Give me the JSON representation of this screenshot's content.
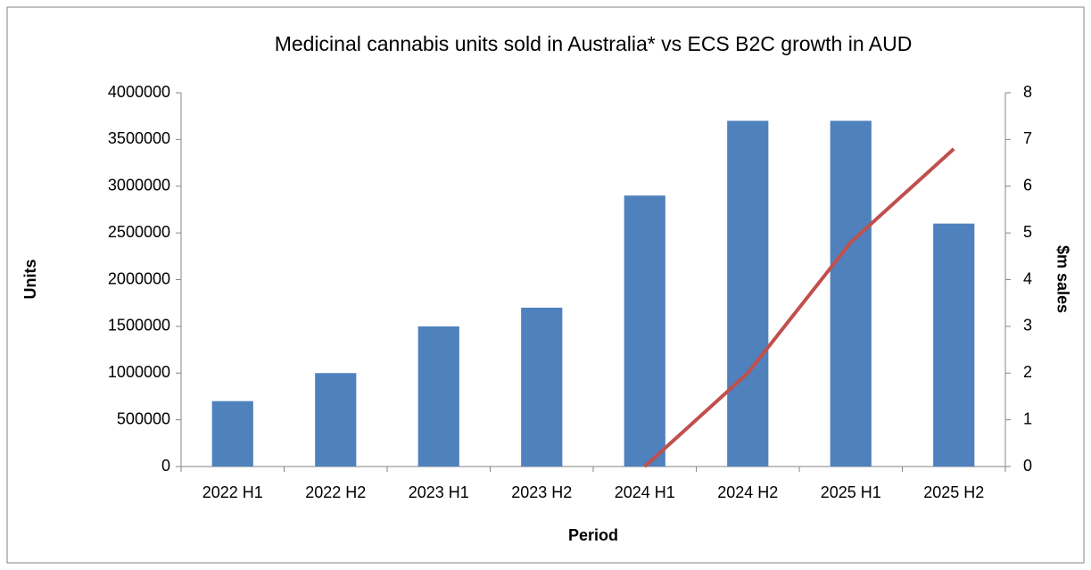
{
  "chart_data": {
    "type": "bar",
    "title": "Medicinal cannabis units sold in Australia* vs ECS B2C growth in AUD",
    "x_label": "Period",
    "y_label": "Units",
    "y2_label": "$m sales",
    "categories": [
      "2022 H1",
      "2022 H2",
      "2023 H1",
      "2023 H2",
      "2024 H1",
      "2024 H2",
      "2025 H1",
      "2025 H2"
    ],
    "series": [
      {
        "type": "bar",
        "color": "#4f81bd",
        "values": [
          700000,
          1000000,
          1500000,
          1700000,
          2900000,
          3700000,
          3700000,
          2600000
        ]
      },
      {
        "type": "line",
        "axis": "y2",
        "color": "#c0504d",
        "values": [
          null,
          null,
          null,
          null,
          0,
          2,
          4.8,
          6.8
        ]
      }
    ],
    "ylim": [
      0,
      4000000
    ],
    "yticks": [
      0,
      500000,
      1000000,
      1500000,
      2000000,
      2500000,
      3000000,
      3500000,
      4000000
    ],
    "y2lim": [
      0,
      8
    ],
    "y2ticks": [
      0,
      1,
      2,
      3,
      4,
      5,
      6,
      7,
      8
    ],
    "grid": false
  }
}
